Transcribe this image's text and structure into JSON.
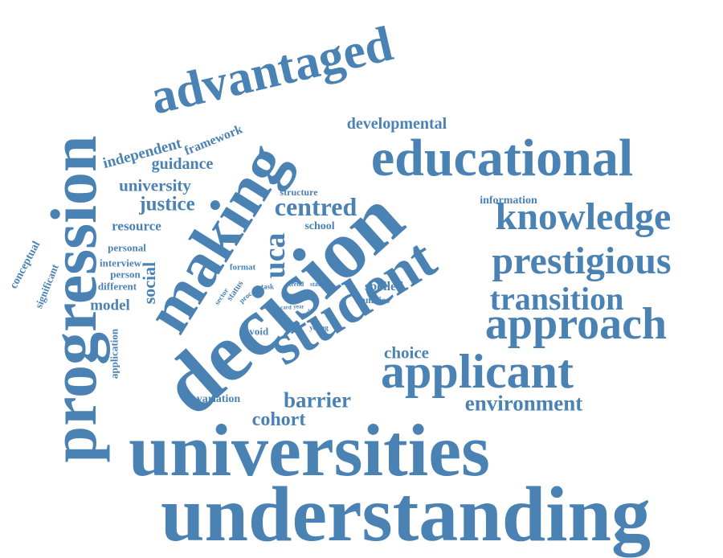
{
  "colors": {
    "word": "#4a82b4",
    "background": "#ffffff"
  },
  "words": [
    "understanding",
    "universities",
    "progression",
    "decision",
    "making",
    "student",
    "educational",
    "advantaged",
    "applicant",
    "approach",
    "prestigious",
    "knowledge",
    "transition",
    "centred",
    "developmental",
    "environment",
    "barrier",
    "cohort",
    "choice",
    "uca",
    "justice",
    "guidance",
    "university",
    "independent",
    "framework",
    "resource",
    "social",
    "model",
    "conceptual",
    "significant",
    "personal",
    "interview",
    "person",
    "different",
    "application",
    "variation",
    "avoid",
    "spoiled",
    "families",
    "information",
    "school",
    "structure",
    "format",
    "sector",
    "status",
    "proc",
    "task",
    "trend",
    "state",
    "card",
    "year",
    "class",
    "young"
  ]
}
